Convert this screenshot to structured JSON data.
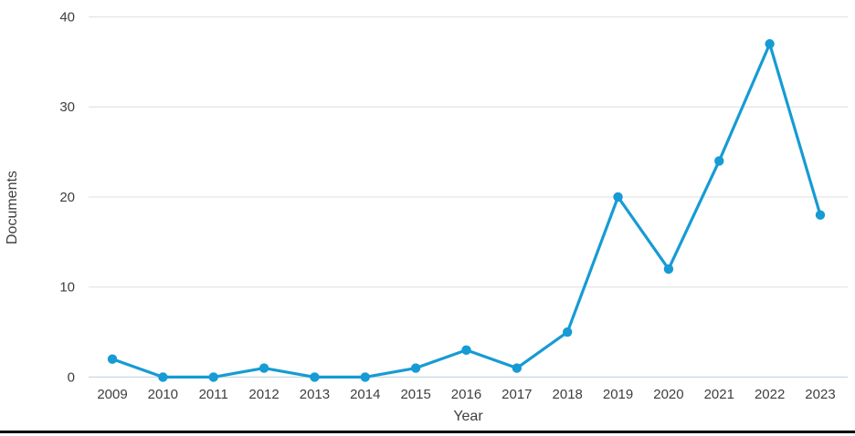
{
  "chart_data": {
    "type": "line",
    "title": "",
    "xlabel": "Year",
    "ylabel": "Documents",
    "x": [
      "2009",
      "2010",
      "2011",
      "2012",
      "2013",
      "2014",
      "2015",
      "2016",
      "2017",
      "2018",
      "2019",
      "2020",
      "2021",
      "2022",
      "2023"
    ],
    "series": [
      {
        "name": "Documents",
        "values": [
          2,
          0,
          0,
          1,
          0,
          0,
          1,
          3,
          1,
          5,
          20,
          12,
          24,
          37,
          18
        ]
      }
    ],
    "ylim": [
      0,
      40
    ],
    "y_ticks": [
      0,
      10,
      20,
      30,
      40
    ],
    "grid": "horizontal",
    "legend": "none"
  },
  "colors": {
    "line": "#169bd4",
    "marker": "#169bd4",
    "gridline": "#e2e2e2",
    "zero_line": "#ccd9e2",
    "text": "#3e3e3e",
    "bottom_rule": "#000000"
  }
}
